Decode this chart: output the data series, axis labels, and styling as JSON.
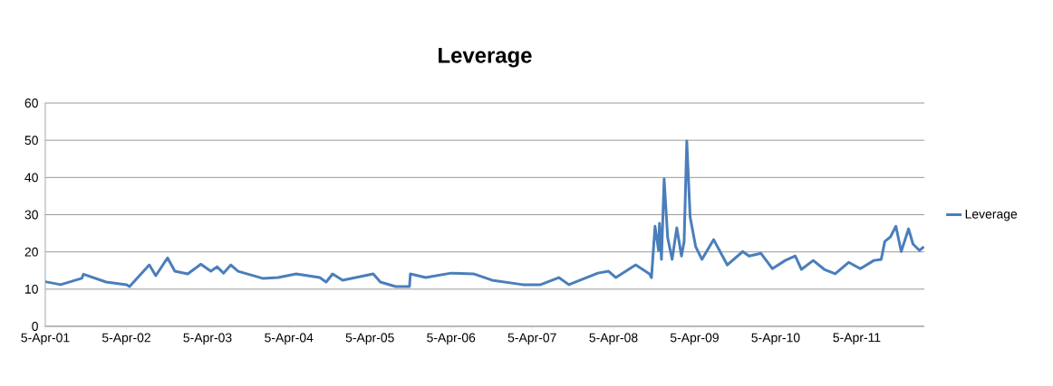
{
  "chart_data": {
    "type": "line",
    "title": "Leverage",
    "x": [
      "2001-04-05",
      "2001-06-13",
      "2001-09-16",
      "2001-09-24",
      "2002-01-04",
      "2002-04-06",
      "2002-04-19",
      "2002-07-17",
      "2002-08-15",
      "2002-10-07",
      "2002-11-09",
      "2003-01-06",
      "2003-03-06",
      "2003-04-20",
      "2003-05-18",
      "2003-06-16",
      "2003-07-19",
      "2003-08-21",
      "2003-12-09",
      "2004-02-17",
      "2004-05-08",
      "2004-08-22",
      "2004-09-20",
      "2004-10-19",
      "2004-12-03",
      "2005-04-20",
      "2005-05-22",
      "2005-07-30",
      "2005-09-30",
      "2005-10-04",
      "2005-12-12",
      "2006-04-05",
      "2006-07-15",
      "2006-10-06",
      "2007-02-22",
      "2007-05-13",
      "2007-08-03",
      "2007-09-17",
      "2008-01-26",
      "2008-03-14",
      "2008-04-16",
      "2008-07-14",
      "2008-09-14",
      "2008-09-23",
      "2008-10-09",
      "2008-10-25",
      "2008-10-29",
      "2008-11-07",
      "2008-11-19",
      "2008-12-05",
      "2008-12-25",
      "2009-01-15",
      "2009-02-05",
      "2009-02-17",
      "2009-03-01",
      "2009-03-16",
      "2009-04-10",
      "2009-05-08",
      "2009-06-30",
      "2009-08-30",
      "2009-11-08",
      "2009-12-06",
      "2010-01-29",
      "2010-03-21",
      "2010-05-18",
      "2010-07-02",
      "2010-07-30",
      "2010-09-21",
      "2010-11-10",
      "2010-12-29",
      "2011-02-28",
      "2011-04-21",
      "2011-06-21",
      "2011-07-24",
      "2011-08-09",
      "2011-09-03",
      "2011-09-28",
      "2011-10-22",
      "2011-11-24",
      "2011-12-14",
      "2012-01-12",
      "2012-02-01"
    ],
    "series": [
      {
        "name": "Leverage",
        "color": "#4a7ebb",
        "values": [
          12.0,
          11.2,
          12.9,
          14.0,
          11.9,
          11.2,
          10.7,
          16.5,
          13.6,
          18.4,
          14.8,
          14.1,
          16.7,
          14.8,
          16.0,
          14.3,
          16.5,
          14.8,
          12.9,
          13.1,
          14.1,
          13.1,
          11.9,
          14.1,
          12.4,
          14.1,
          11.9,
          10.7,
          10.7,
          14.1,
          13.1,
          14.3,
          14.1,
          12.4,
          11.2,
          11.2,
          13.1,
          11.2,
          14.3,
          14.8,
          13.1,
          16.5,
          14.1,
          13.1,
          26.9,
          20.4,
          27.7,
          18.0,
          39.6,
          23.8,
          18.0,
          26.5,
          18.9,
          22.8,
          49.8,
          29.4,
          21.4,
          18.0,
          23.3,
          16.5,
          20.1,
          18.9,
          19.6,
          15.5,
          17.7,
          18.9,
          15.3,
          17.7,
          15.3,
          14.1,
          17.2,
          15.5,
          17.7,
          18.0,
          22.8,
          24.0,
          26.9,
          20.1,
          26.2,
          22.1,
          20.4,
          21.4
        ]
      }
    ],
    "xlim": [
      "2001-04-05",
      "2012-02-03"
    ],
    "xticks": [
      {
        "value": "2001-04-05",
        "label": "5-Apr-01"
      },
      {
        "value": "2002-04-05",
        "label": "5-Apr-02"
      },
      {
        "value": "2003-04-05",
        "label": "5-Apr-03"
      },
      {
        "value": "2004-04-05",
        "label": "5-Apr-04"
      },
      {
        "value": "2005-04-05",
        "label": "5-Apr-05"
      },
      {
        "value": "2006-04-05",
        "label": "5-Apr-06"
      },
      {
        "value": "2007-04-05",
        "label": "5-Apr-07"
      },
      {
        "value": "2008-04-05",
        "label": "5-Apr-08"
      },
      {
        "value": "2009-04-05",
        "label": "5-Apr-09"
      },
      {
        "value": "2010-04-05",
        "label": "5-Apr-10"
      },
      {
        "value": "2011-04-05",
        "label": "5-Apr-11"
      }
    ],
    "ylim": [
      0,
      60
    ],
    "yticks": [
      0,
      10,
      20,
      30,
      40,
      50,
      60
    ],
    "grid": "y",
    "legend": "right"
  }
}
